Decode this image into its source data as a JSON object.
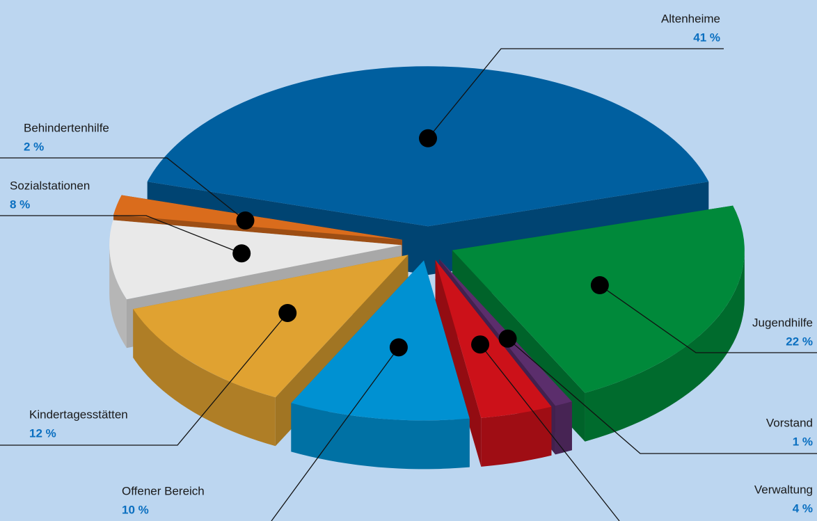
{
  "chart_data": {
    "type": "pie",
    "categories": [
      "Altenheime",
      "Jugendhilfe",
      "Vorstand",
      "Verwaltung",
      "Offener Bereich",
      "Kindertagesstätten",
      "Sozialstationen",
      "Behindertenhilfe"
    ],
    "values": [
      41,
      22,
      1,
      4,
      10,
      12,
      8,
      2
    ],
    "value_labels": [
      "41 %",
      "22 %",
      "1 %",
      "4 %",
      "10 %",
      "12 %",
      "8 %",
      "2 %"
    ],
    "colors": [
      "#005f9f",
      "#00893a",
      "#5b2e6c",
      "#cc1119",
      "#0091d2",
      "#e0a231",
      "#e9e9e9",
      "#da6c1c"
    ]
  }
}
